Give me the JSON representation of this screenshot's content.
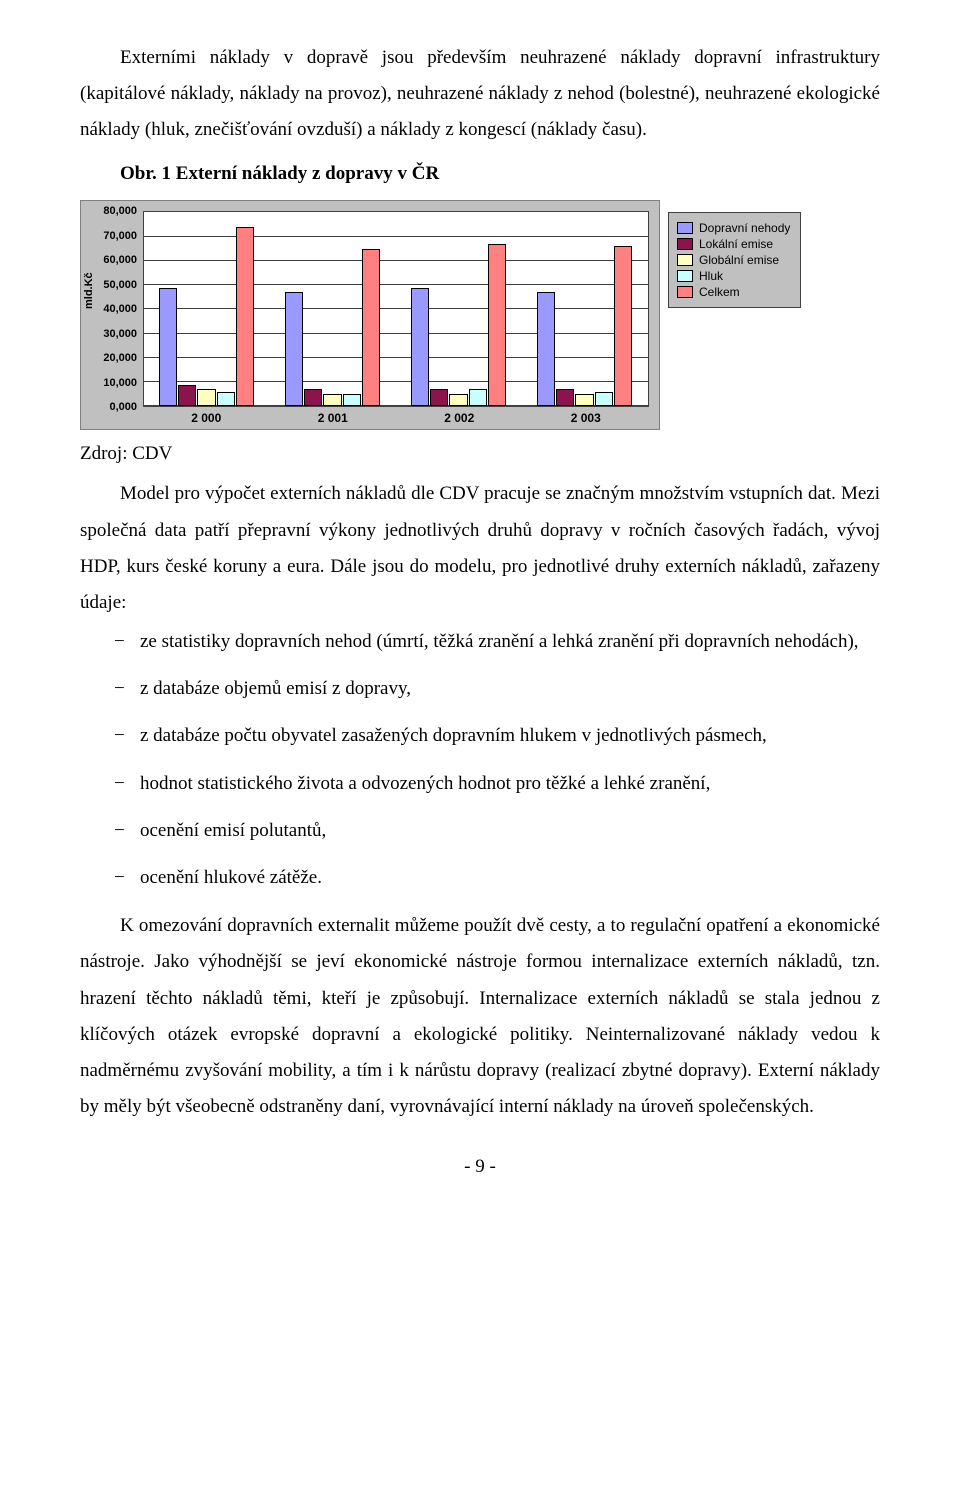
{
  "paragraphs": {
    "p1": "Externími náklady v dopravě jsou především neuhrazené náklady dopravní infrastruktury (kapitálové náklady, náklady na provoz), neuhrazené náklady z nehod (bolestné), neuhrazené ekologické náklady (hluk, znečišťování ovzduší) a náklady z kongescí (náklady času).",
    "fig_title": "Obr. 1 Externí náklady z dopravy v ČR",
    "source": "Zdroj: CDV",
    "p2": "Model pro výpočet externích nákladů dle CDV pracuje se značným množstvím vstupních dat. Mezi společná data patří přepravní výkony jednotlivých druhů dopravy v ročních časových řadách, vývoj HDP, kurs české koruny a eura. Dále jsou do modelu, pro jednotlivé druhy externích nákladů, zařazeny údaje:",
    "bullets": [
      "ze statistiky dopravních nehod (úmrtí, těžká zranění a lehká zranění při dopravních nehodách),",
      "z databáze objemů emisí z dopravy,",
      "z databáze počtu obyvatel zasažených dopravním hlukem v jednotlivých pásmech,",
      "hodnot statistického života a odvozených hodnot pro těžké a lehké zranění,",
      "ocenění emisí polutantů,",
      "ocenění hlukové zátěže."
    ],
    "p3": "K omezování dopravních externalit můžeme použít dvě cesty, a to regulační opatření a ekonomické nástroje. Jako výhodnější se jeví ekonomické nástroje formou internalizace externích nákladů, tzn. hrazení těchto nákladů těmi, kteří je způsobují. Internalizace externích nákladů se stala jednou z klíčových otázek evropské dopravní a ekologické politiky. Neinternalizované náklady vedou k nadměrnému zvyšování mobility, a tím i k nárůstu dopravy (realizací zbytné dopravy). Externí náklady by měly být všeobecně odstraněny daní, vyrovnávající interní náklady na úroveň společenských.",
    "pagenum": "- 9 -"
  },
  "chart": {
    "type": "bar",
    "y_label": "mld.Kč",
    "y_ticks": [
      "0,000",
      "10,000",
      "20,000",
      "30,000",
      "40,000",
      "50,000",
      "60,000",
      "70,000",
      "80,000"
    ],
    "ymax": 80,
    "categories": [
      "2 000",
      "2 001",
      "2 002",
      "2 003"
    ],
    "series": [
      {
        "name": "Dopravní nehody",
        "color": "#9999ff",
        "values": [
          49,
          47,
          49,
          47
        ]
      },
      {
        "name": "Lokální emise",
        "color": "#8b144c",
        "values": [
          9,
          7,
          7,
          7
        ]
      },
      {
        "name": "Globální emise",
        "color": "#ffffc0",
        "values": [
          7,
          5,
          5,
          5
        ]
      },
      {
        "name": "Hluk",
        "color": "#c8ffff",
        "values": [
          6,
          5,
          7,
          6
        ]
      },
      {
        "name": "Celkem",
        "color": "#ff8080",
        "values": [
          74,
          65,
          67,
          66
        ]
      }
    ],
    "background": "#c0c0c0",
    "plot_bg": "#ffffff",
    "grid_color": "#404040",
    "tick_font": "bold 11px Arial"
  }
}
